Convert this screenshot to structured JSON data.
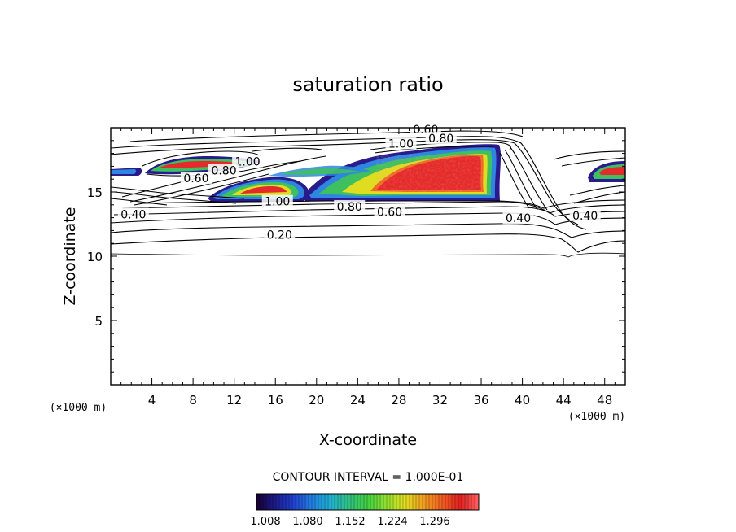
{
  "chart_data": {
    "type": "contour",
    "title": "saturation ratio",
    "xlabel": "X-coordinate",
    "ylabel": "Z-coordinate",
    "x_unit": "(×1000 m)",
    "y_unit": "(×1000 m)",
    "xlim": [
      0,
      50
    ],
    "ylim": [
      0,
      20
    ],
    "xticks": [
      4,
      8,
      12,
      16,
      20,
      24,
      28,
      32,
      36,
      40,
      44,
      48
    ],
    "yticks": [
      5,
      10,
      15
    ],
    "contour_interval_text": "CONTOUR INTERVAL = 1.000E-01",
    "contour_labels": [
      {
        "text": "0.60",
        "x": 30.6,
        "y": 19.8
      },
      {
        "text": "0.80",
        "x": 32.1,
        "y": 19.1
      },
      {
        "text": "1.00",
        "x": 28.2,
        "y": 18.7
      },
      {
        "text": "1.00",
        "x": 13.3,
        "y": 17.3
      },
      {
        "text": "0.80",
        "x": 11.0,
        "y": 16.6
      },
      {
        "text": "0.60",
        "x": 8.3,
        "y": 16.0
      },
      {
        "text": "0.40",
        "x": 2.2,
        "y": 13.2
      },
      {
        "text": "1.00",
        "x": 16.2,
        "y": 14.2
      },
      {
        "text": "0.80",
        "x": 23.2,
        "y": 13.8
      },
      {
        "text": "0.60",
        "x": 27.1,
        "y": 13.4
      },
      {
        "text": "0.40",
        "x": 39.6,
        "y": 12.9
      },
      {
        "text": "0.40",
        "x": 46.1,
        "y": 13.1
      },
      {
        "text": "0.20",
        "x": 16.4,
        "y": 11.6
      }
    ],
    "colorbar": {
      "ticks": [
        "1.008",
        "1.080",
        "1.152",
        "1.224",
        "1.296"
      ],
      "colors": [
        "#1a0030",
        "#1b1b8a",
        "#2040d0",
        "#2080e0",
        "#20b0d0",
        "#30c080",
        "#40d040",
        "#90e030",
        "#e0e020",
        "#f0a020",
        "#f06020",
        "#e02020",
        "#ff6060"
      ]
    }
  }
}
